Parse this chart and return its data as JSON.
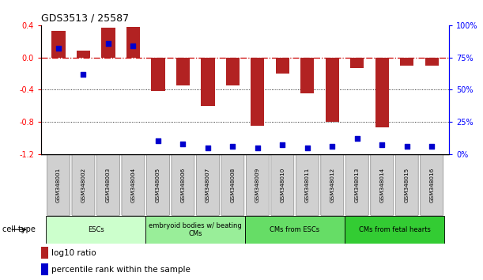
{
  "title": "GDS3513 / 25587",
  "samples": [
    "GSM348001",
    "GSM348002",
    "GSM348003",
    "GSM348004",
    "GSM348005",
    "GSM348006",
    "GSM348007",
    "GSM348008",
    "GSM348009",
    "GSM348010",
    "GSM348011",
    "GSM348012",
    "GSM348013",
    "GSM348014",
    "GSM348015",
    "GSM348016"
  ],
  "log10_ratio": [
    0.33,
    0.08,
    0.37,
    0.38,
    -0.42,
    -0.35,
    -0.6,
    -0.35,
    -0.85,
    -0.2,
    -0.45,
    -0.8,
    -0.13,
    -0.87,
    -0.1,
    -0.1
  ],
  "percentile_rank": [
    82,
    62,
    86,
    84,
    10,
    8,
    5,
    6,
    5,
    7,
    5,
    6,
    12,
    7,
    6,
    6
  ],
  "bar_color": "#b22222",
  "dot_color": "#0000cd",
  "ylim_left": [
    -1.2,
    0.4
  ],
  "ylim_right": [
    0,
    100
  ],
  "hline_zero_color": "#cc0000",
  "hline_grid_color": "black",
  "cell_type_groups": [
    {
      "label": "ESCs",
      "start": 0,
      "end": 3,
      "color": "#ccffcc"
    },
    {
      "label": "embryoid bodies w/ beating\nCMs",
      "start": 4,
      "end": 7,
      "color": "#99ee99"
    },
    {
      "label": "CMs from ESCs",
      "start": 8,
      "end": 11,
      "color": "#66dd66"
    },
    {
      "label": "CMs from fetal hearts",
      "start": 12,
      "end": 15,
      "color": "#33cc33"
    }
  ],
  "legend_red": "log10 ratio",
  "legend_blue": "percentile rank within the sample",
  "cell_type_label": "cell type",
  "sample_box_color": "#d0d0d0",
  "sample_box_edge": "#888888"
}
